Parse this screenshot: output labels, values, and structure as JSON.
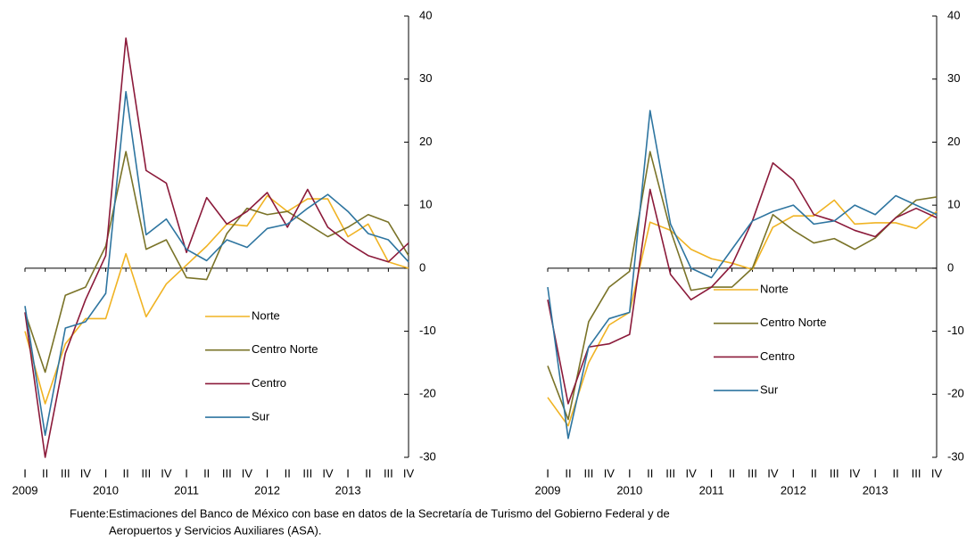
{
  "chart_data": [
    {
      "type": "line",
      "categories": [
        "I",
        "II",
        "III",
        "IV",
        "I",
        "II",
        "III",
        "IV",
        "I",
        "II",
        "III",
        "IV",
        "I",
        "II",
        "III",
        "IV",
        "I",
        "II",
        "III",
        "IV"
      ],
      "years": [
        "2009",
        "2010",
        "2011",
        "2012",
        "2013"
      ],
      "ylim": [
        -30,
        40
      ],
      "yticks": [
        -30,
        -20,
        -10,
        0,
        10,
        20,
        30,
        40
      ],
      "series": [
        {
          "name": "Norte",
          "color": "#f0b323",
          "values": [
            -10,
            -21.5,
            -12,
            -8,
            -8,
            2.3,
            -7.7,
            -2.5,
            0.5,
            3.5,
            7,
            6.7,
            11.5,
            9,
            11,
            11,
            5,
            7,
            1,
            0
          ]
        },
        {
          "name": "Centro Norte",
          "color": "#7a7328",
          "values": [
            -7,
            -16.5,
            -4.3,
            -3,
            3.5,
            18.5,
            3,
            4.5,
            -1.5,
            -1.8,
            5.5,
            9.5,
            8.5,
            9,
            7,
            5,
            6.5,
            8.5,
            7.3,
            2
          ]
        },
        {
          "name": "Centro",
          "color": "#8b1a3a",
          "values": [
            -7,
            -30,
            -13.5,
            -5,
            2,
            36.5,
            15.5,
            13.5,
            2.5,
            11.2,
            7,
            9,
            12,
            6.5,
            12.5,
            6.5,
            4,
            2,
            1,
            4
          ]
        },
        {
          "name": "Sur",
          "color": "#2e75a0",
          "values": [
            -6,
            -26.5,
            -9.5,
            -8.5,
            -4,
            28,
            5.3,
            7.8,
            3,
            1.2,
            4.5,
            3.3,
            6.3,
            7,
            9.5,
            11.7,
            9,
            5.5,
            4.5,
            1
          ]
        }
      ]
    },
    {
      "type": "line",
      "categories": [
        "I",
        "II",
        "III",
        "IV",
        "I",
        "II",
        "III",
        "IV",
        "I",
        "II",
        "III",
        "IV",
        "I",
        "II",
        "III",
        "IV",
        "I",
        "II",
        "III",
        "IV"
      ],
      "years": [
        "2009",
        "2010",
        "2011",
        "2012",
        "2013"
      ],
      "ylim": [
        -30,
        40
      ],
      "yticks": [
        -30,
        -20,
        -10,
        0,
        10,
        20,
        30,
        40
      ],
      "series": [
        {
          "name": "Norte",
          "color": "#f0b323",
          "values": [
            -20.5,
            -25,
            -15,
            -9,
            -7,
            7.3,
            6,
            3,
            1.5,
            0.8,
            -0.2,
            6.5,
            8.3,
            8.3,
            10.8,
            7,
            7.2,
            7.2,
            6.3,
            9
          ]
        },
        {
          "name": "Centro Norte",
          "color": "#7a7328",
          "values": [
            -15.5,
            -24,
            -8.5,
            -3,
            -0.5,
            18.5,
            6,
            -3.5,
            -3,
            -3,
            0,
            8.5,
            6,
            4,
            4.7,
            3,
            4.8,
            8,
            10.8,
            11.3
          ]
        },
        {
          "name": "Centro",
          "color": "#8b1a3a",
          "values": [
            -5,
            -21.5,
            -12.5,
            -12,
            -10.5,
            12.5,
            -1,
            -5,
            -3,
            0.5,
            7.5,
            16.7,
            14,
            8.5,
            7.5,
            6,
            5,
            8,
            9.5,
            8
          ]
        },
        {
          "name": "Sur",
          "color": "#2e75a0",
          "values": [
            -3,
            -27,
            -12.5,
            -8,
            -7,
            25,
            7,
            0,
            -1.5,
            3,
            7.5,
            9,
            10,
            7,
            7.5,
            10,
            8.5,
            11.5,
            10,
            8.5
          ]
        }
      ]
    }
  ],
  "source": {
    "label": "Fuente:",
    "lines": [
      "Estimaciones del Banco de México con base en datos de la Secretaría de Turismo del Gobierno Federal y de",
      "Aeropuertos y Servicios Auxiliares (ASA)."
    ]
  }
}
